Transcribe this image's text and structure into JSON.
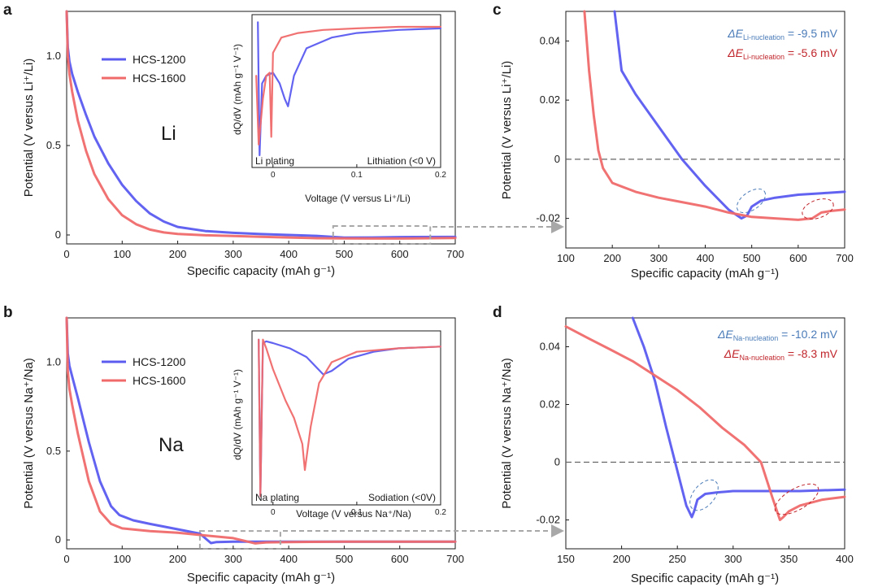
{
  "colors": {
    "hcs1200": "#5b5bf0",
    "hcs1600": "#f06a6a",
    "axis": "#1a1a1a",
    "dash": "#666666",
    "box": "#a8a8a8",
    "li_text": "#4a8a3a",
    "na_text": "#7a3fa0",
    "ann_blue": "#4a7bb8",
    "ann_red": "#c0252b"
  },
  "panels": {
    "a": {
      "letter": "a",
      "xlabel": "Specific capacity (mAh g⁻¹)",
      "ylabel": "Potential (V versus Li⁺/Li)",
      "xticks": [
        "0",
        "100",
        "200",
        "300",
        "400",
        "500",
        "600",
        "700"
      ],
      "yticks": [
        "0",
        "0.5",
        "1.0"
      ],
      "element": "Li",
      "legend": [
        "HCS-1200",
        "HCS-1600"
      ],
      "inset": {
        "ylabel": "dQ/dV (mAh g⁻¹ V⁻¹)",
        "xlabel": "Voltage (V versus Li⁺/Li)",
        "xticks": [
          "0",
          "0.1",
          "0.2"
        ],
        "left_note": "Li plating",
        "right_note": "Lithiation (<0 V)"
      }
    },
    "b": {
      "letter": "b",
      "xlabel": "Specific capacity (mAh g⁻¹)",
      "ylabel": "Potential (V versus Na⁺/Na)",
      "xticks": [
        "0",
        "100",
        "200",
        "300",
        "400",
        "500",
        "600",
        "700"
      ],
      "yticks": [
        "0",
        "0.5",
        "1.0"
      ],
      "element": "Na",
      "legend": [
        "HCS-1200",
        "HCS-1600"
      ],
      "inset": {
        "ylabel": "dQ/dV (mAh g⁻¹ V⁻¹)",
        "xlabel": "Voltage (V versus Na⁺/Na)",
        "xticks": [
          "0",
          "0.1",
          "0.2"
        ],
        "left_note": "Na plating",
        "right_note": "Sodiation (<0V)"
      }
    },
    "c": {
      "letter": "c",
      "xlabel": "Specific capacity (mAh g⁻¹)",
      "ylabel": "Potential (V versus Li⁺/Li)",
      "xticks": [
        "100",
        "200",
        "300",
        "400",
        "500",
        "600",
        "700"
      ],
      "yticks": [
        "0.04",
        "0.02",
        "0",
        "-0.02"
      ],
      "ann1": {
        "pre": "ΔE",
        "sub": "Li-nucleation",
        "post": " = -9.5 mV"
      },
      "ann2": {
        "pre": "ΔE",
        "sub": "Li-nucleation",
        "post": " = -5.6 mV"
      }
    },
    "d": {
      "letter": "d",
      "xlabel": "Specific capacity (mAh g⁻¹)",
      "ylabel": "Potential (V versus Na⁺/Na)",
      "xticks": [
        "150",
        "200",
        "250",
        "300",
        "350",
        "400"
      ],
      "yticks": [
        "0.04",
        "0.02",
        "0",
        "-0.02"
      ],
      "ann1": {
        "pre": "ΔE",
        "sub": "Na-nucleation",
        "post": " = -10.2 mV"
      },
      "ann2": {
        "pre": "ΔE",
        "sub": "Na-nucleation",
        "post": " = -8.3 mV"
      }
    }
  },
  "chart_data": [
    {
      "panel": "a",
      "type": "line",
      "xlabel": "Specific capacity (mAh g⁻¹)",
      "ylabel": "Potential (V versus Li⁺/Li)",
      "xlim": [
        0,
        700
      ],
      "ylim": [
        -0.05,
        1.25
      ],
      "series": [
        {
          "name": "HCS-1200",
          "x": [
            0,
            2,
            5,
            10,
            20,
            35,
            50,
            75,
            100,
            125,
            150,
            175,
            200,
            250,
            300,
            350,
            400,
            450,
            500,
            550,
            600,
            700
          ],
          "y": [
            1.25,
            1.05,
            0.97,
            0.9,
            0.8,
            0.67,
            0.55,
            0.4,
            0.28,
            0.19,
            0.12,
            0.075,
            0.045,
            0.022,
            0.012,
            0.005,
            0.0,
            -0.005,
            -0.015,
            -0.014,
            -0.012,
            -0.011
          ]
        },
        {
          "name": "HCS-1600",
          "x": [
            0,
            2,
            5,
            10,
            20,
            35,
            50,
            75,
            100,
            125,
            150,
            175,
            200,
            250,
            300,
            350,
            400,
            450,
            500,
            550,
            600,
            700
          ],
          "y": [
            1.25,
            1.0,
            0.9,
            0.8,
            0.64,
            0.47,
            0.34,
            0.2,
            0.11,
            0.06,
            0.03,
            0.014,
            0.006,
            -0.002,
            -0.006,
            -0.01,
            -0.014,
            -0.018,
            -0.019,
            -0.02,
            -0.02,
            -0.017
          ]
        }
      ],
      "annotation": "Li",
      "zoom_box_x": [
        480,
        655
      ]
    },
    {
      "panel": "a-inset",
      "type": "line",
      "xlabel": "Voltage (V versus Li⁺/Li)",
      "xlim": [
        -0.025,
        0.2
      ],
      "ylim": [
        0,
        1
      ],
      "series": [
        {
          "name": "HCS-1200",
          "x": [
            -0.018,
            -0.016,
            -0.013,
            -0.008,
            0.0,
            0.008,
            0.014,
            0.018,
            0.025,
            0.04,
            0.07,
            0.1,
            0.15,
            0.2
          ],
          "y": [
            0.95,
            0.08,
            0.55,
            0.6,
            0.62,
            0.55,
            0.45,
            0.4,
            0.6,
            0.78,
            0.85,
            0.88,
            0.9,
            0.91
          ]
        },
        {
          "name": "HCS-1600",
          "x": [
            -0.02,
            -0.017,
            -0.012,
            -0.008,
            -0.004,
            -0.002,
            0.0,
            0.01,
            0.03,
            0.06,
            0.1,
            0.15,
            0.2
          ],
          "y": [
            0.6,
            0.15,
            0.45,
            0.6,
            0.62,
            0.2,
            0.75,
            0.85,
            0.88,
            0.9,
            0.91,
            0.92,
            0.92
          ]
        }
      ],
      "annotations": [
        "Li plating",
        "Lithiation (<0 V)"
      ]
    },
    {
      "panel": "b",
      "type": "line",
      "xlabel": "Specific capacity (mAh g⁻¹)",
      "ylabel": "Potential (V versus Na⁺/Na)",
      "xlim": [
        0,
        700
      ],
      "ylim": [
        -0.05,
        1.25
      ],
      "series": [
        {
          "name": "HCS-1200",
          "x": [
            0,
            2,
            5,
            10,
            20,
            40,
            60,
            80,
            95,
            120,
            150,
            200,
            240,
            260,
            270,
            300,
            350,
            400,
            500,
            600,
            700
          ],
          "y": [
            1.25,
            1.05,
            0.98,
            0.92,
            0.8,
            0.55,
            0.33,
            0.19,
            0.14,
            0.11,
            0.09,
            0.06,
            0.035,
            -0.018,
            -0.012,
            -0.01,
            -0.01,
            -0.01,
            -0.01,
            -0.01,
            -0.01
          ]
        },
        {
          "name": "HCS-1600",
          "x": [
            0,
            2,
            5,
            10,
            20,
            40,
            60,
            80,
            100,
            150,
            200,
            250,
            300,
            340,
            345,
            360,
            400,
            500,
            600,
            700
          ],
          "y": [
            1.25,
            0.95,
            0.85,
            0.76,
            0.6,
            0.33,
            0.16,
            0.09,
            0.065,
            0.05,
            0.04,
            0.025,
            0.01,
            -0.02,
            -0.018,
            -0.014,
            -0.012,
            -0.01,
            -0.01,
            -0.01
          ]
        }
      ],
      "annotation": "Na",
      "zoom_box_x": [
        240,
        385
      ]
    },
    {
      "panel": "b-inset",
      "type": "line",
      "xlabel": "Voltage (V versus Na⁺/Na)",
      "xlim": [
        -0.025,
        0.2
      ],
      "ylim": [
        0,
        1
      ],
      "series": [
        {
          "name": "HCS-1200",
          "x": [
            -0.017,
            -0.015,
            -0.012,
            -0.008,
            0.0,
            0.02,
            0.04,
            0.06,
            0.07,
            0.09,
            0.12,
            0.15,
            0.2
          ],
          "y": [
            0.95,
            0.05,
            0.93,
            0.94,
            0.93,
            0.9,
            0.85,
            0.75,
            0.77,
            0.84,
            0.88,
            0.9,
            0.91
          ]
        },
        {
          "name": "HCS-1600",
          "x": [
            -0.017,
            -0.015,
            -0.012,
            -0.008,
            0.0,
            0.015,
            0.025,
            0.035,
            0.038,
            0.045,
            0.055,
            0.07,
            0.1,
            0.15,
            0.2
          ],
          "y": [
            0.95,
            0.05,
            0.95,
            0.9,
            0.78,
            0.6,
            0.5,
            0.35,
            0.2,
            0.45,
            0.7,
            0.82,
            0.88,
            0.9,
            0.91
          ]
        }
      ],
      "annotations": [
        "Na plating",
        "Sodiation (<0V)"
      ]
    },
    {
      "panel": "c",
      "type": "line",
      "xlabel": "Specific capacity (mAh g⁻¹)",
      "ylabel": "Potential (V versus Li⁺/Li)",
      "xlim": [
        100,
        700
      ],
      "ylim": [
        -0.03,
        0.05
      ],
      "series": [
        {
          "name": "HCS-1200",
          "x": [
            205,
            220,
            250,
            300,
            350,
            400,
            450,
            478,
            490,
            500,
            520,
            550,
            600,
            650,
            700
          ],
          "y": [
            0.05,
            0.03,
            0.022,
            0.011,
            0.0,
            -0.009,
            -0.017,
            -0.02,
            -0.019,
            -0.016,
            -0.014,
            -0.013,
            -0.012,
            -0.0115,
            -0.011
          ]
        },
        {
          "name": "HCS-1600",
          "x": [
            140,
            150,
            160,
            170,
            180,
            200,
            250,
            300,
            350,
            400,
            450,
            500,
            550,
            600,
            630,
            650,
            670,
            700
          ],
          "y": [
            0.05,
            0.03,
            0.015,
            0.003,
            -0.003,
            -0.008,
            -0.011,
            -0.013,
            -0.0145,
            -0.016,
            -0.018,
            -0.0195,
            -0.02,
            -0.0205,
            -0.02,
            -0.018,
            -0.0175,
            -0.017
          ]
        }
      ],
      "reference_line_y": 0,
      "annotations": [
        "ΔE Li-nucleation = -9.5 mV",
        "ΔE Li-nucleation = -5.6 mV"
      ]
    },
    {
      "panel": "d",
      "type": "line",
      "xlabel": "Specific capacity (mAh g⁻¹)",
      "ylabel": "Potential (V versus Na⁺/Na)",
      "xlim": [
        150,
        400
      ],
      "ylim": [
        -0.03,
        0.05
      ],
      "series": [
        {
          "name": "HCS-1200",
          "x": [
            210,
            220,
            230,
            240,
            250,
            258,
            263,
            265,
            268,
            275,
            285,
            300,
            330,
            360,
            400
          ],
          "y": [
            0.05,
            0.04,
            0.028,
            0.012,
            -0.003,
            -0.015,
            -0.019,
            -0.017,
            -0.013,
            -0.011,
            -0.0105,
            -0.01,
            -0.01,
            -0.01,
            -0.0095
          ]
        },
        {
          "name": "HCS-1600",
          "x": [
            150,
            170,
            190,
            210,
            230,
            250,
            270,
            290,
            310,
            325,
            335,
            342,
            345,
            350,
            360,
            380,
            400
          ],
          "y": [
            0.047,
            0.043,
            0.039,
            0.035,
            0.03,
            0.025,
            0.019,
            0.012,
            0.006,
            0.0,
            -0.012,
            -0.02,
            -0.019,
            -0.017,
            -0.015,
            -0.013,
            -0.012
          ]
        }
      ],
      "reference_line_y": 0,
      "annotations": [
        "ΔE Na-nucleation = -10.2 mV",
        "ΔE Na-nucleation = -8.3 mV"
      ]
    }
  ]
}
